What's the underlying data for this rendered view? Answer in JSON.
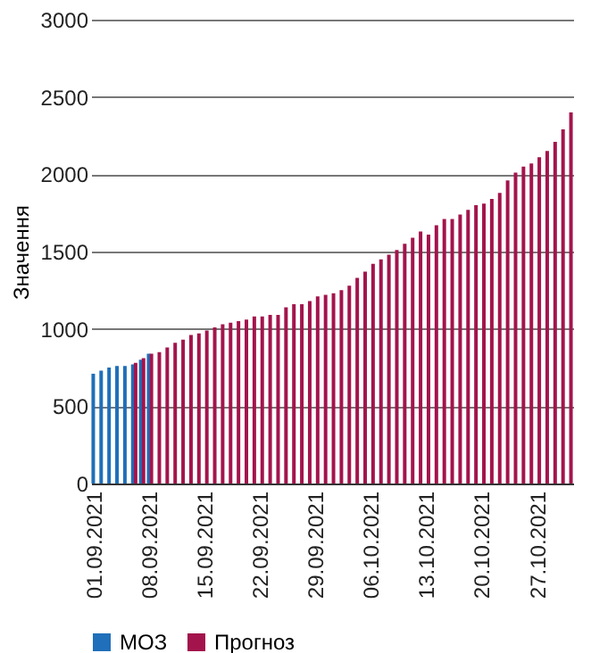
{
  "chart_data": {
    "type": "bar",
    "ylabel": "Значення",
    "categories": [
      "01.09.2021",
      null,
      null,
      null,
      null,
      null,
      null,
      "08.09.2021",
      null,
      null,
      null,
      null,
      null,
      null,
      "15.09.2021",
      null,
      null,
      null,
      null,
      null,
      null,
      "22.09.2021",
      null,
      null,
      null,
      null,
      null,
      null,
      "29.09.2021",
      null,
      null,
      null,
      null,
      null,
      null,
      "06.10.2021",
      null,
      null,
      null,
      null,
      null,
      null,
      "13.10.2021",
      null,
      null,
      null,
      null,
      null,
      null,
      "20.10.2021",
      null,
      null,
      null,
      null,
      null,
      null,
      "27.10.2021",
      null,
      null,
      null,
      null
    ],
    "series": [
      {
        "name": "МОЗ",
        "color": "#1f6fba",
        "values": [
          710,
          730,
          750,
          760,
          760,
          770,
          800,
          840,
          null,
          null,
          null,
          null,
          null,
          null,
          null,
          null,
          null,
          null,
          null,
          null,
          null,
          null,
          null,
          null,
          null,
          null,
          null,
          null,
          null,
          null,
          null,
          null,
          null,
          null,
          null,
          null,
          null,
          null,
          null,
          null,
          null,
          null,
          null,
          null,
          null,
          null,
          null,
          null,
          null,
          null,
          null,
          null,
          null,
          null,
          null,
          null,
          null,
          null,
          null,
          null,
          null
        ]
      },
      {
        "name": "Прогноз",
        "color": "#a3144c",
        "values": [
          null,
          null,
          null,
          null,
          null,
          780,
          810,
          840,
          850,
          880,
          910,
          930,
          960,
          970,
          990,
          1010,
          1030,
          1040,
          1050,
          1060,
          1080,
          1080,
          1090,
          1090,
          1140,
          1160,
          1160,
          1180,
          1210,
          1220,
          1230,
          1250,
          1280,
          1330,
          1370,
          1420,
          1450,
          1480,
          1510,
          1550,
          1590,
          1630,
          1610,
          1670,
          1710,
          1710,
          1740,
          1770,
          1800,
          1810,
          1840,
          1880,
          1960,
          2010,
          2050,
          2070,
          2110,
          2150,
          2210,
          2290,
          2400
        ]
      }
    ],
    "ylim": [
      0,
      3000
    ],
    "yticks": [
      0,
      500,
      1000,
      1500,
      2000,
      2500,
      3000
    ],
    "grid": "y",
    "legend": "bottom"
  }
}
